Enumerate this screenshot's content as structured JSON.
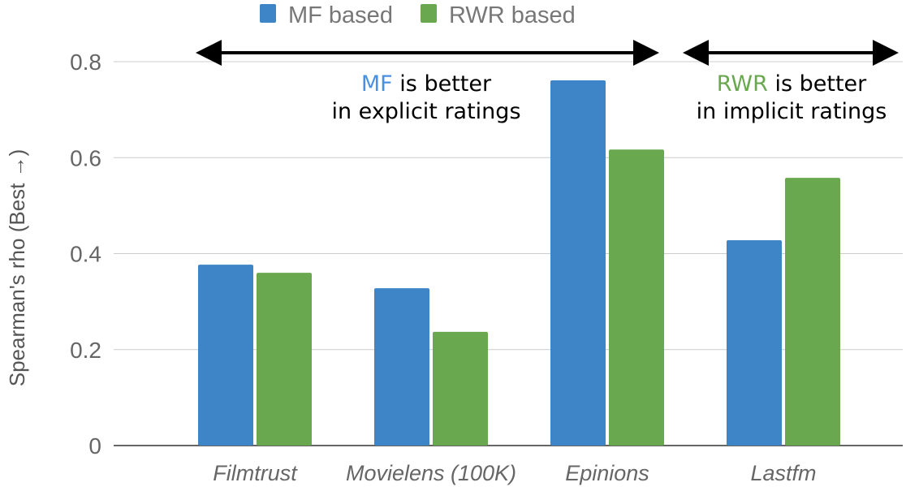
{
  "chart_data": {
    "type": "bar",
    "title": "",
    "xlabel": "",
    "ylabel": "Spearman's rho  (Best →)",
    "ylim": [
      0,
      0.8
    ],
    "yticks": [
      "0",
      "0.2",
      "0.4",
      "0.6",
      "0.8"
    ],
    "ytick_values": [
      0,
      0.2,
      0.4,
      0.6,
      0.8
    ],
    "grid": true,
    "legend_position": "top-center",
    "categories": [
      "Filmtrust",
      "Movielens (100K)",
      "Epinions",
      "Lastfm"
    ],
    "series": [
      {
        "name": "MF based",
        "color": "#3d85c6",
        "values": [
          0.377,
          0.328,
          0.761,
          0.428
        ]
      },
      {
        "name": "RWR based",
        "color": "#6aa84f",
        "values": [
          0.36,
          0.237,
          0.617,
          0.558
        ]
      }
    ],
    "annotations": [
      {
        "highlight": "MF",
        "highlight_color": "#4a90e2",
        "line1_rest": " is better",
        "line2": "in explicit ratings",
        "span": [
          "Filmtrust",
          "Epinions"
        ]
      },
      {
        "highlight": "RWR",
        "highlight_color": "#6aa84f",
        "line1_rest": " is better",
        "line2": "in implicit ratings",
        "span": [
          "Lastfm",
          "Lastfm"
        ]
      }
    ]
  }
}
